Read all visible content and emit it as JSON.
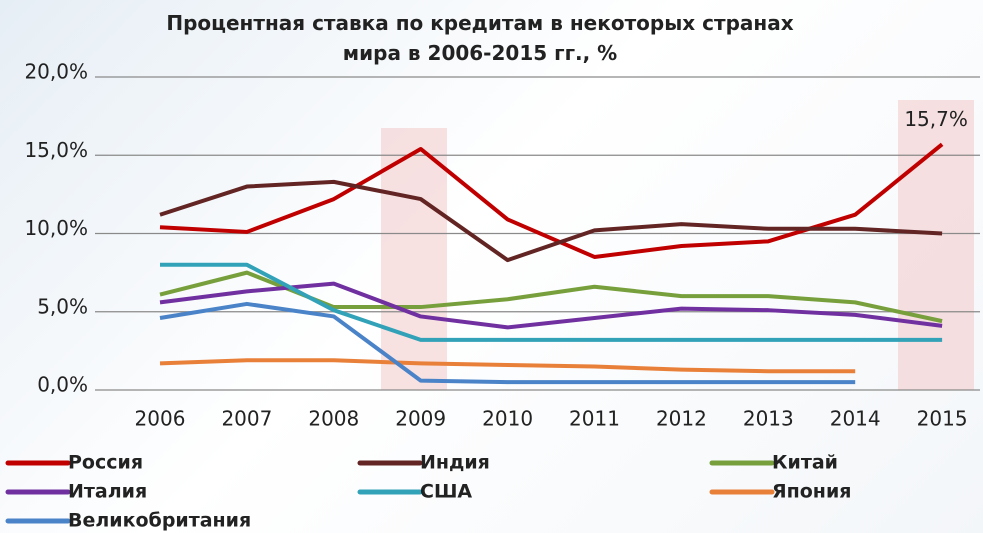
{
  "chart_data": {
    "type": "line",
    "title": "Процентная ставка по кредитам в некоторых странах\nмира в 2006-2015 гг., %",
    "categories": [
      "2006",
      "2007",
      "2008",
      "2009",
      "2010",
      "2011",
      "2012",
      "2013",
      "2014",
      "2015"
    ],
    "ylim": [
      0,
      20
    ],
    "yticks": [
      {
        "value": 0,
        "label": "0,0%"
      },
      {
        "value": 5,
        "label": "5,0%"
      },
      {
        "value": 10,
        "label": "10,0%"
      },
      {
        "value": 15,
        "label": "15,0%"
      },
      {
        "value": 20,
        "label": "20,0%"
      }
    ],
    "grid": true,
    "series": [
      {
        "name": "Россия",
        "color": "#c00000",
        "values": [
          10.4,
          10.1,
          12.2,
          15.4,
          10.9,
          8.5,
          9.2,
          9.5,
          11.2,
          15.7
        ],
        "value_labels": [
          null,
          null,
          null,
          null,
          null,
          null,
          null,
          null,
          null,
          "15,7%"
        ]
      },
      {
        "name": "Индия",
        "color": "#632523",
        "values": [
          11.2,
          13.0,
          13.3,
          12.2,
          8.3,
          10.2,
          10.6,
          10.3,
          10.3,
          10.0
        ]
      },
      {
        "name": "Китай",
        "color": "#77a03c",
        "values": [
          6.1,
          7.5,
          5.3,
          5.3,
          5.8,
          6.6,
          6.0,
          6.0,
          5.6,
          4.4
        ]
      },
      {
        "name": "Италия",
        "color": "#7030a0",
        "values": [
          5.6,
          6.3,
          6.8,
          4.7,
          4.0,
          4.6,
          5.2,
          5.1,
          4.8,
          4.1
        ]
      },
      {
        "name": "США",
        "color": "#31a2b8",
        "values": [
          8.0,
          8.0,
          5.1,
          3.2,
          3.2,
          3.2,
          3.2,
          3.2,
          3.2,
          3.2
        ]
      },
      {
        "name": "Япония",
        "color": "#e9803a",
        "values": [
          1.7,
          1.9,
          1.9,
          1.7,
          1.6,
          1.5,
          1.3,
          1.2,
          1.2,
          null
        ]
      },
      {
        "name": "Великобритания",
        "color": "#4a83c8",
        "values": [
          4.6,
          5.5,
          4.7,
          0.6,
          0.5,
          0.5,
          0.5,
          0.5,
          0.5,
          null
        ]
      }
    ]
  }
}
